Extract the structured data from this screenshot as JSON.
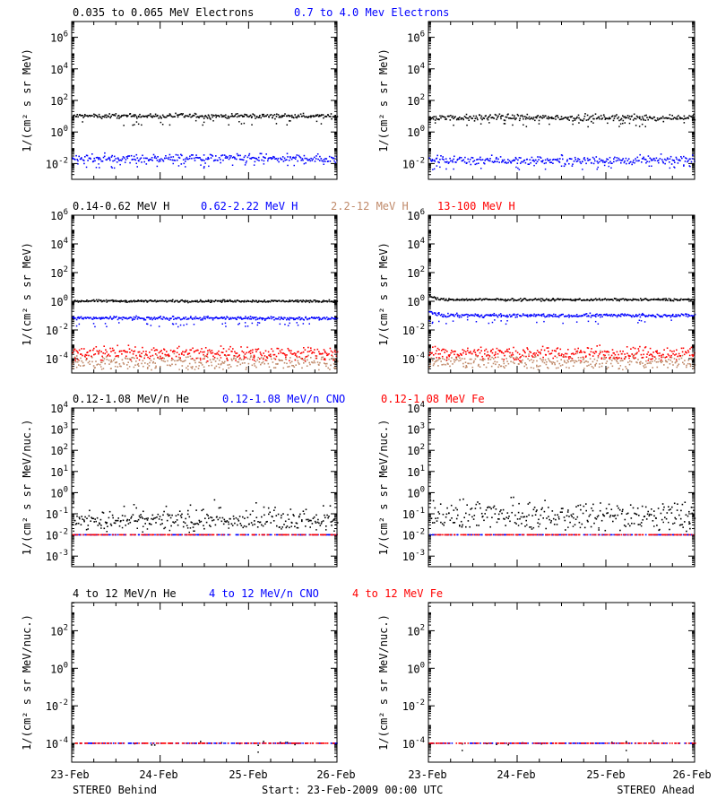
{
  "colors": {
    "black": "#000000",
    "blue": "#0000ff",
    "tan": "#c08a6a",
    "red": "#ff0000"
  },
  "rows": [
    {
      "titles": [
        {
          "text": "0.035 to 0.065 MeV Electrons",
          "color": "#000000"
        },
        {
          "text": "0.7 to 4.0 Mev Electrons",
          "color": "#0000ff"
        }
      ],
      "ylabel": "1/(cm² s sr MeV)",
      "yticks": [
        {
          "base": "10",
          "exp": "-2"
        },
        {
          "base": "10",
          "exp": "0"
        },
        {
          "base": "10",
          "exp": "2"
        },
        {
          "base": "10",
          "exp": "4"
        },
        {
          "base": "10",
          "exp": "6"
        }
      ]
    },
    {
      "titles": [
        {
          "text": "0.14-0.62 MeV H",
          "color": "#000000"
        },
        {
          "text": "0.62-2.22 MeV H",
          "color": "#0000ff"
        },
        {
          "text": "2.2-12 MeV H",
          "color": "#c08a6a"
        },
        {
          "text": "13-100 MeV H",
          "color": "#ff0000"
        }
      ],
      "ylabel": "1/(cm² s sr MeV)",
      "yticks": [
        {
          "base": "10",
          "exp": "-4"
        },
        {
          "base": "10",
          "exp": "-2"
        },
        {
          "base": "10",
          "exp": "0"
        },
        {
          "base": "10",
          "exp": "2"
        },
        {
          "base": "10",
          "exp": "4"
        },
        {
          "base": "10",
          "exp": "6"
        }
      ]
    },
    {
      "titles": [
        {
          "text": "0.12-1.08 MeV/n He",
          "color": "#000000"
        },
        {
          "text": "0.12-1.08 MeV/n CNO",
          "color": "#0000ff"
        },
        {
          "text": "0.12-1.08 MeV Fe",
          "color": "#ff0000"
        }
      ],
      "ylabel": "1/(cm² s sr MeV/nuc.)",
      "yticks": [
        {
          "base": "10",
          "exp": "-3"
        },
        {
          "base": "10",
          "exp": "-2"
        },
        {
          "base": "10",
          "exp": "-1"
        },
        {
          "base": "10",
          "exp": "0"
        },
        {
          "base": "10",
          "exp": "1"
        },
        {
          "base": "10",
          "exp": "2"
        },
        {
          "base": "10",
          "exp": "3"
        },
        {
          "base": "10",
          "exp": "4"
        }
      ]
    },
    {
      "titles": [
        {
          "text": "4 to 12 MeV/n He",
          "color": "#000000"
        },
        {
          "text": "4 to 12 MeV/n CNO",
          "color": "#0000ff"
        },
        {
          "text": "4 to 12 MeV Fe",
          "color": "#ff0000"
        }
      ],
      "ylabel": "1/(cm² s sr MeV/nuc.)",
      "yticks": [
        {
          "base": "10",
          "exp": "-4"
        },
        {
          "base": "10",
          "exp": "-2"
        },
        {
          "base": "10",
          "exp": "0"
        },
        {
          "base": "10",
          "exp": "2"
        }
      ]
    }
  ],
  "xticks": [
    "23-Feb",
    "24-Feb",
    "25-Feb",
    "26-Feb"
  ],
  "footer": {
    "left": "STEREO Behind",
    "center": "Start: 23-Feb-2009 00:00 UTC",
    "right": "STEREO Ahead"
  },
  "chart_data": [
    {
      "type": "scatter",
      "panel": "electrons",
      "spacecraft": "STEREO Behind",
      "yscale": "log",
      "ylim_exp": [
        -3,
        7
      ],
      "xlim_days": [
        0,
        3
      ],
      "series": [
        {
          "name": "0.035 to 0.065 MeV Electrons",
          "color": "#000000",
          "level_exp": 1.0,
          "scatter": 0.07
        },
        {
          "name": "0.7 to 4.0 Mev Electrons",
          "color": "#0000ff",
          "level_exp": -1.7,
          "scatter": 0.14
        }
      ]
    },
    {
      "type": "scatter",
      "panel": "electrons",
      "spacecraft": "STEREO Ahead",
      "yscale": "log",
      "ylim_exp": [
        -3,
        7
      ],
      "xlim_days": [
        0,
        3
      ],
      "series": [
        {
          "name": "0.035 to 0.065 MeV Electrons",
          "color": "#000000",
          "level_exp": 0.9,
          "scatter": 0.1
        },
        {
          "name": "0.7 to 4.0 Mev Electrons",
          "color": "#0000ff",
          "level_exp": -1.8,
          "scatter": 0.14
        }
      ]
    },
    {
      "type": "scatter",
      "panel": "protons",
      "spacecraft": "STEREO Behind",
      "yscale": "log",
      "ylim_exp": [
        -5,
        6
      ],
      "xlim_days": [
        0,
        3
      ],
      "series": [
        {
          "name": "0.14-0.62 MeV H",
          "color": "#000000",
          "level_exp": 0.0,
          "scatter": 0.04
        },
        {
          "name": "0.62-2.22 MeV H",
          "color": "#0000ff",
          "level_exp": -1.2,
          "scatter": 0.06
        },
        {
          "name": "2.2-12 MeV H",
          "color": "#c08a6a",
          "level_exp": -4.2,
          "scatter": 0.25
        },
        {
          "name": "13-100 MeV H",
          "color": "#ff0000",
          "level_exp": -3.6,
          "scatter": 0.22
        }
      ]
    },
    {
      "type": "scatter",
      "panel": "protons",
      "spacecraft": "STEREO Ahead",
      "yscale": "log",
      "ylim_exp": [
        -5,
        6
      ],
      "xlim_days": [
        0,
        3
      ],
      "series": [
        {
          "name": "0.14-0.62 MeV H",
          "color": "#000000",
          "level_exp": 0.1,
          "scatter": 0.04
        },
        {
          "name": "0.62-2.22 MeV H",
          "color": "#0000ff",
          "level_exp": -1.0,
          "scatter": 0.06
        },
        {
          "name": "2.2-12 MeV H",
          "color": "#c08a6a",
          "level_exp": -4.2,
          "scatter": 0.25
        },
        {
          "name": "13-100 MeV H",
          "color": "#ff0000",
          "level_exp": -3.6,
          "scatter": 0.22
        }
      ]
    },
    {
      "type": "scatter",
      "panel": "heavy-ions-low",
      "spacecraft": "STEREO Behind",
      "yscale": "log",
      "ylim_exp": [
        -3.5,
        4
      ],
      "xlim_days": [
        0,
        3
      ],
      "series": [
        {
          "name": "0.12-1.08 MeV/n He",
          "color": "#000000",
          "level_exp": -1.3,
          "scatter": 0.2
        },
        {
          "name": "0.12-1.08 MeV/n CNO",
          "color": "#0000ff",
          "level_exp": -2.0,
          "scatter": 0.0
        },
        {
          "name": "0.12-1.08 MeV Fe",
          "color": "#ff0000",
          "level_exp": -2.0,
          "scatter": 0.0
        }
      ]
    },
    {
      "type": "scatter",
      "panel": "heavy-ions-low",
      "spacecraft": "STEREO Ahead",
      "yscale": "log",
      "ylim_exp": [
        -3.5,
        4
      ],
      "xlim_days": [
        0,
        3
      ],
      "series": [
        {
          "name": "0.12-1.08 MeV/n He",
          "color": "#000000",
          "level_exp": -1.1,
          "scatter": 0.3
        },
        {
          "name": "0.12-1.08 MeV/n CNO",
          "color": "#0000ff",
          "level_exp": -2.0,
          "scatter": 0.0
        },
        {
          "name": "0.12-1.08 MeV Fe",
          "color": "#ff0000",
          "level_exp": -2.0,
          "scatter": 0.0
        }
      ]
    },
    {
      "type": "scatter",
      "panel": "heavy-ions-high",
      "spacecraft": "STEREO Behind",
      "yscale": "log",
      "ylim_exp": [
        -5,
        3.5
      ],
      "xlim_days": [
        0,
        3
      ],
      "series": [
        {
          "name": "4 to 12 MeV/n He",
          "color": "#000000",
          "level_exp": -4.0,
          "scatter": 0.1
        },
        {
          "name": "4 to 12 MeV/n CNO",
          "color": "#0000ff",
          "level_exp": -4.0,
          "scatter": 0.0
        },
        {
          "name": "4 to 12 MeV Fe",
          "color": "#ff0000",
          "level_exp": -4.0,
          "scatter": 0.0
        }
      ]
    },
    {
      "type": "scatter",
      "panel": "heavy-ions-high",
      "spacecraft": "STEREO Ahead",
      "yscale": "log",
      "ylim_exp": [
        -5,
        3.5
      ],
      "xlim_days": [
        0,
        3
      ],
      "series": [
        {
          "name": "4 to 12 MeV/n He",
          "color": "#000000",
          "level_exp": -4.0,
          "scatter": 0.1
        },
        {
          "name": "4 to 12 MeV/n CNO",
          "color": "#0000ff",
          "level_exp": -4.0,
          "scatter": 0.0
        },
        {
          "name": "4 to 12 MeV Fe",
          "color": "#ff0000",
          "level_exp": -4.0,
          "scatter": 0.0
        }
      ]
    }
  ]
}
